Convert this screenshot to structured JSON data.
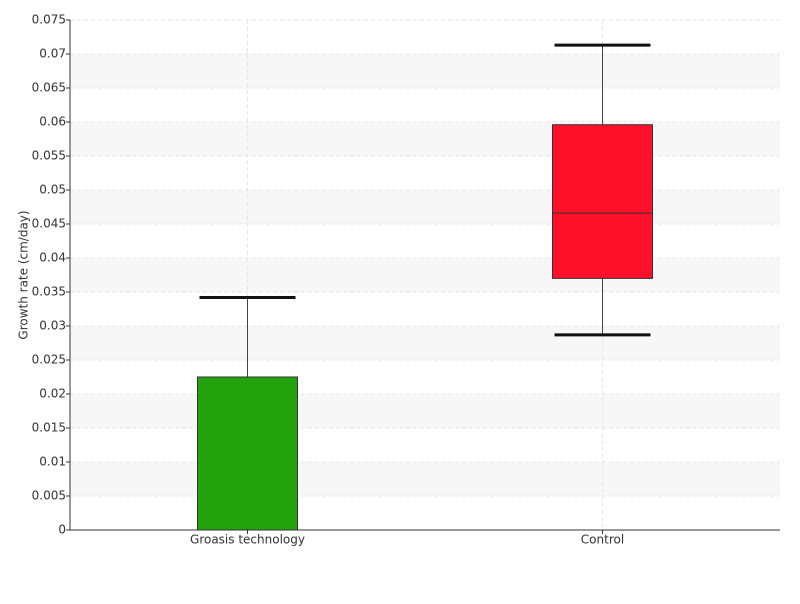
{
  "chart_data": {
    "type": "box",
    "y_label": "Growth rate (cm/day)",
    "categories": [
      "Groasis technology",
      "Control"
    ],
    "boxes": [
      {
        "min": 0,
        "q1": 0,
        "median": 0,
        "q3": 0.0225,
        "max": 0.0342,
        "color": "#22a30d"
      },
      {
        "min": 0.0287,
        "q1": 0.037,
        "median": 0.0466,
        "q3": 0.0596,
        "max": 0.0713,
        "color": "#ff102a"
      }
    ],
    "ylim": [
      0,
      0.075
    ],
    "yticks": [
      0,
      0.005,
      0.01,
      0.015,
      0.02,
      0.025,
      0.03,
      0.035,
      0.04,
      0.045,
      0.05,
      0.055,
      0.06,
      0.065,
      0.07,
      0.075
    ],
    "grid": true
  }
}
